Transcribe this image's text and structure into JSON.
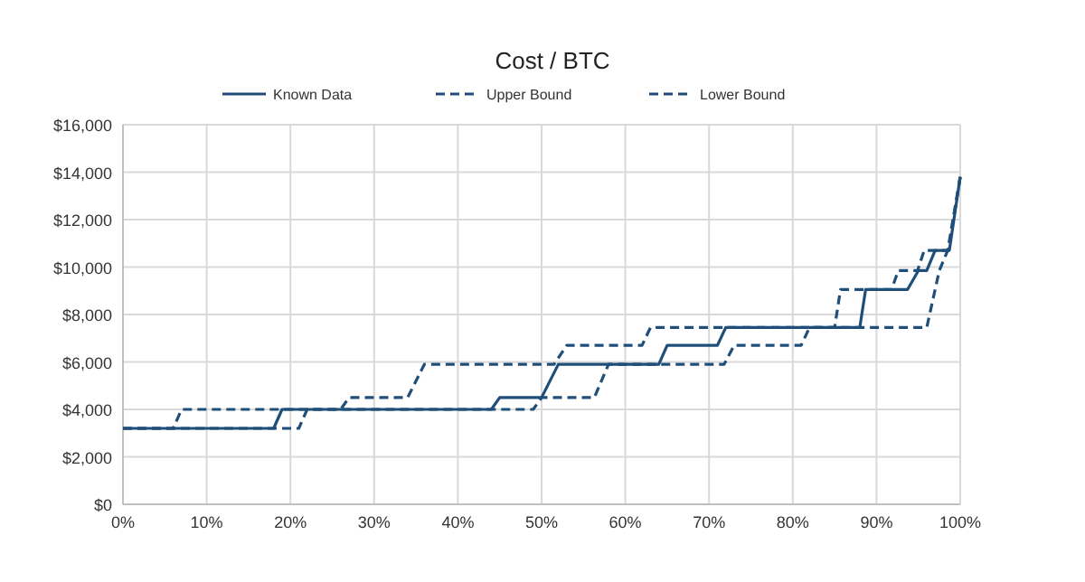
{
  "chart_data": {
    "type": "line",
    "title": "Cost / BTC",
    "legend": "top",
    "grid": true,
    "xlim": [
      0,
      100
    ],
    "xticks": [
      {
        "value": 0,
        "label": "0%"
      },
      {
        "value": 10,
        "label": "10%"
      },
      {
        "value": 20,
        "label": "20%"
      },
      {
        "value": 30,
        "label": "30%"
      },
      {
        "value": 40,
        "label": "40%"
      },
      {
        "value": 50,
        "label": "50%"
      },
      {
        "value": 60,
        "label": "60%"
      },
      {
        "value": 70,
        "label": "70%"
      },
      {
        "value": 80,
        "label": "80%"
      },
      {
        "value": 90,
        "label": "90%"
      },
      {
        "value": 100,
        "label": "100%"
      }
    ],
    "ylim": [
      0,
      16000
    ],
    "yticks": [
      {
        "value": 0,
        "label": "$0"
      },
      {
        "value": 2000,
        "label": "$2,000"
      },
      {
        "value": 4000,
        "label": "$4,000"
      },
      {
        "value": 6000,
        "label": "$6,000"
      },
      {
        "value": 8000,
        "label": "$8,000"
      },
      {
        "value": 10000,
        "label": "$10,000"
      },
      {
        "value": 12000,
        "label": "$12,000"
      },
      {
        "value": 14000,
        "label": "$14,000"
      },
      {
        "value": 16000,
        "label": "$16,000"
      }
    ],
    "marker": "none",
    "series": [
      {
        "name": "Known Data",
        "color": "#1f4e79",
        "line_style": "solid",
        "x": [
          0,
          18,
          19,
          44,
          45,
          50,
          52,
          64,
          65,
          71,
          72,
          88,
          88.7,
          93.7,
          95,
          96,
          97,
          98.7,
          100
        ],
        "values": [
          3200,
          3200,
          4000,
          4000,
          4500,
          4500,
          5900,
          5900,
          6700,
          6700,
          7450,
          7450,
          9050,
          9050,
          9850,
          9850,
          10700,
          10700,
          13800
        ]
      },
      {
        "name": "Upper Bound",
        "color": "#1f4e79",
        "line_style": "dashed",
        "x": [
          0,
          6,
          7,
          26,
          27,
          34,
          36,
          51.5,
          53,
          62,
          63,
          85,
          85.7,
          91.8,
          92.6,
          94.9,
          95.7,
          98.6,
          100
        ],
        "values": [
          3200,
          3200,
          4000,
          4000,
          4500,
          4500,
          5900,
          5900,
          6700,
          6700,
          7450,
          7450,
          9050,
          9050,
          9850,
          9850,
          10700,
          10700,
          13800
        ]
      },
      {
        "name": "Lower Bound",
        "color": "#1f4e79",
        "line_style": "dashed",
        "x": [
          0,
          21,
          22,
          49,
          50,
          56.3,
          58,
          71.8,
          73,
          81,
          82,
          96,
          97.5,
          98.5,
          100
        ],
        "values": [
          3200,
          3200,
          4000,
          4000,
          4500,
          4500,
          5900,
          5900,
          6700,
          6700,
          7450,
          7450,
          9850,
          10700,
          13800
        ]
      }
    ]
  }
}
